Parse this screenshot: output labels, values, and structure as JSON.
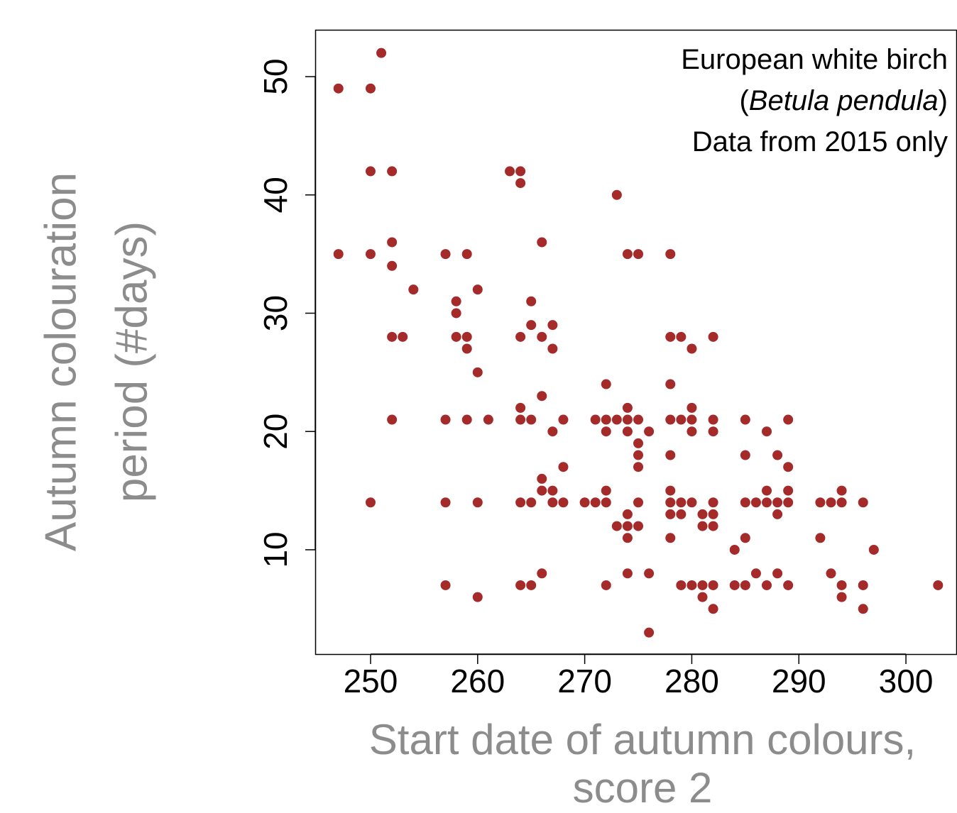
{
  "chart_data": {
    "type": "scatter",
    "annotation": [
      [
        "European white birch"
      ],
      [
        "(",
        "Betula pendula",
        ")"
      ],
      [
        "Data from 2015 only"
      ]
    ],
    "xlabel": [
      "Start date of autumn colours,",
      "score 2"
    ],
    "ylabel": [
      "Autumn colouration",
      "period (#days)"
    ],
    "color": "#a52a2a",
    "x": [
      247,
      247,
      250,
      250,
      250,
      250,
      251,
      252,
      252,
      252,
      252,
      252,
      253,
      254,
      257,
      257,
      257,
      257,
      258,
      258,
      258,
      259,
      259,
      259,
      259,
      260,
      260,
      260,
      260,
      261,
      263,
      264,
      264,
      264,
      264,
      264,
      264,
      264,
      265,
      265,
      265,
      265,
      265,
      266,
      266,
      266,
      266,
      266,
      266,
      267,
      267,
      267,
      267,
      267,
      268,
      268,
      268,
      270,
      271,
      271,
      272,
      272,
      272,
      272,
      272,
      272,
      273,
      273,
      273,
      274,
      274,
      274,
      274,
      274,
      274,
      274,
      274,
      275,
      275,
      275,
      275,
      275,
      275,
      275,
      276,
      276,
      276,
      278,
      278,
      278,
      278,
      278,
      278,
      278,
      278,
      278,
      279,
      279,
      279,
      279,
      279,
      280,
      280,
      280,
      280,
      280,
      280,
      281,
      281,
      281,
      281,
      282,
      282,
      282,
      282,
      282,
      282,
      282,
      282,
      284,
      284,
      285,
      285,
      285,
      285,
      285,
      286,
      286,
      287,
      287,
      287,
      287,
      288,
      288,
      288,
      288,
      289,
      289,
      289,
      289,
      289,
      292,
      292,
      293,
      293,
      294,
      294,
      294,
      294,
      296,
      296,
      296,
      297,
      303
    ],
    "values": [
      49,
      35,
      49,
      42,
      35,
      14,
      52,
      42,
      36,
      34,
      28,
      21,
      28,
      32,
      35,
      21,
      14,
      7,
      31,
      30,
      28,
      35,
      28,
      27,
      21,
      32,
      25,
      14,
      6,
      21,
      42,
      42,
      41,
      28,
      22,
      21,
      14,
      7,
      31,
      29,
      21,
      14,
      7,
      36,
      28,
      23,
      16,
      15,
      8,
      29,
      27,
      20,
      15,
      14,
      21,
      17,
      14,
      14,
      21,
      14,
      24,
      21,
      20,
      15,
      14,
      7,
      40,
      21,
      12,
      35,
      22,
      21,
      20,
      13,
      12,
      11,
      8,
      35,
      21,
      19,
      18,
      17,
      14,
      12,
      20,
      8,
      3,
      35,
      28,
      24,
      21,
      18,
      15,
      14,
      13,
      11,
      28,
      21,
      14,
      13,
      7,
      27,
      22,
      21,
      20,
      14,
      7,
      13,
      12,
      7,
      6,
      28,
      21,
      20,
      14,
      13,
      12,
      7,
      5,
      10,
      7,
      21,
      18,
      14,
      11,
      7,
      14,
      8,
      20,
      15,
      14,
      7,
      18,
      14,
      13,
      8,
      21,
      17,
      15,
      14,
      7,
      14,
      11,
      14,
      8,
      15,
      14,
      7,
      6,
      14,
      7,
      5,
      10,
      7
    ],
    "xlim": [
      244.83,
      304.77
    ],
    "ylim": [
      1.18,
      53.96
    ],
    "xticks": [
      250,
      260,
      270,
      280,
      290,
      300
    ],
    "yticks": [
      10,
      20,
      30,
      40,
      50
    ]
  }
}
